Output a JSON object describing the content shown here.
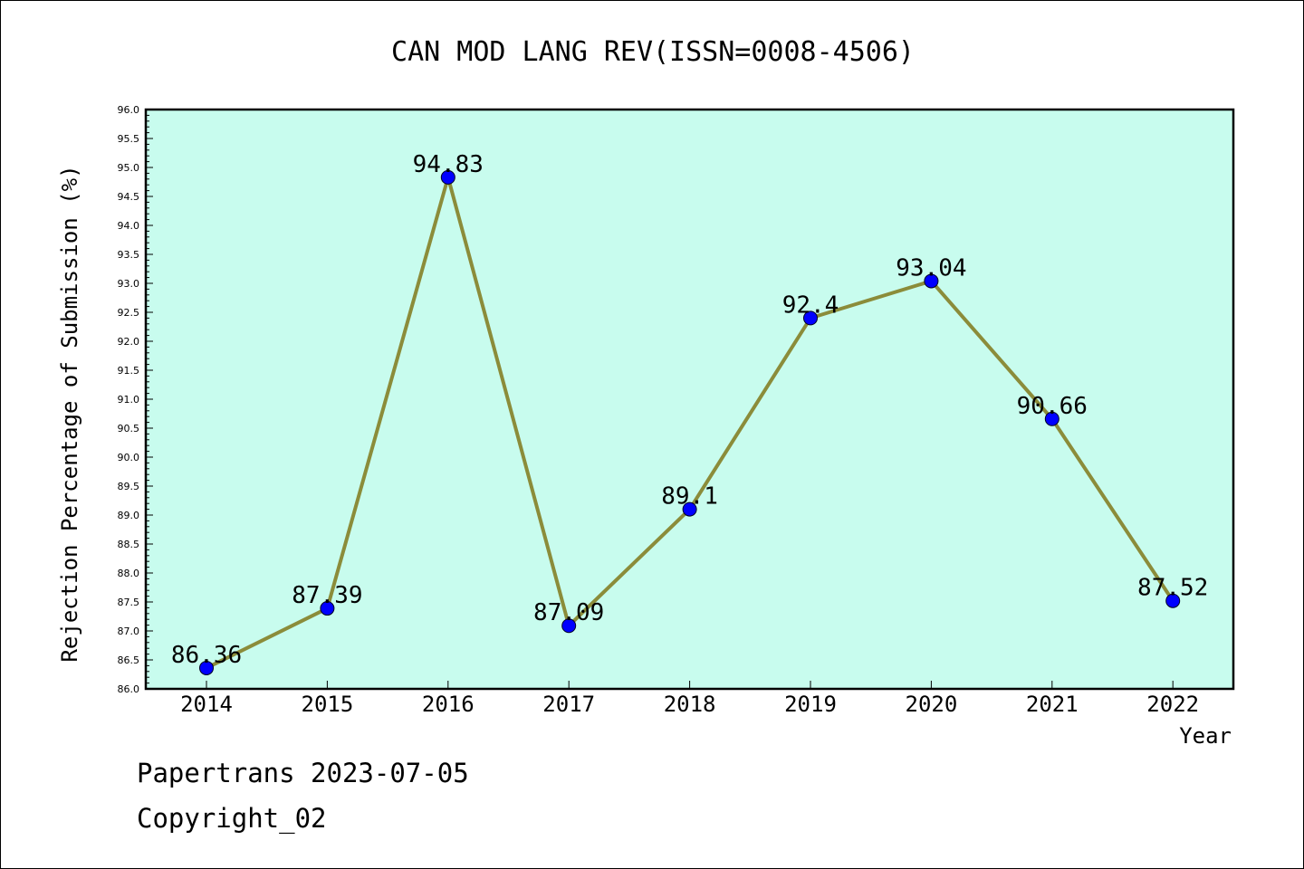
{
  "chart_data": {
    "type": "line",
    "title": "CAN MOD LANG REV(ISSN=0008-4506)",
    "xlabel": "Year",
    "ylabel": "Rejection Percentage of Submission (%)",
    "categories": [
      "2014",
      "2015",
      "2016",
      "2017",
      "2018",
      "2019",
      "2020",
      "2021",
      "2022"
    ],
    "values": [
      86.36,
      87.39,
      94.83,
      87.09,
      89.1,
      92.4,
      93.04,
      90.66,
      87.52
    ],
    "data_labels": [
      "86.36",
      "87.39",
      "94.83",
      "87.09",
      "89.1",
      "92.4",
      "93.04",
      "90.66",
      "87.52"
    ],
    "ylim": [
      86.0,
      96.0
    ],
    "y_ticks": [
      "86.0",
      "86.5",
      "87.0",
      "87.5",
      "88.0",
      "88.5",
      "89.0",
      "89.5",
      "90.0",
      "90.5",
      "91.0",
      "91.5",
      "92.0",
      "92.5",
      "93.0",
      "93.5",
      "94.0",
      "94.5",
      "95.0",
      "95.5",
      "96.0"
    ],
    "grid": false,
    "colors": {
      "plot_background": "#c8fcee",
      "line": "#8b8c3a",
      "marker": "#0000ff"
    }
  },
  "footer": {
    "date_line": "Papertrans 2023-07-05",
    "copyright_line": "Copyright_02"
  }
}
